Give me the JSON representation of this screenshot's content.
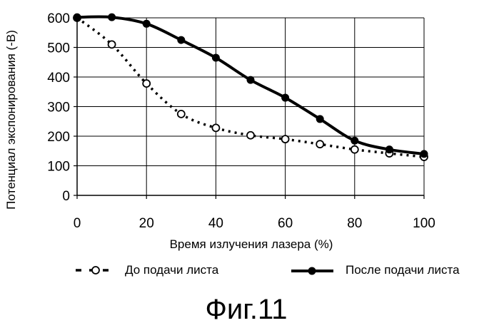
{
  "chart_data": {
    "type": "line",
    "xlabel": "Время излучения лазера (%)",
    "ylabel": "Потенциал экспонирования (-В)",
    "xlim": [
      0,
      100
    ],
    "ylim": [
      0,
      600
    ],
    "xticks": [
      0,
      20,
      40,
      60,
      80,
      100
    ],
    "yticks": [
      0,
      100,
      200,
      300,
      400,
      500,
      600
    ],
    "grid": true,
    "legend_position": "bottom",
    "x": [
      0,
      10,
      20,
      30,
      40,
      50,
      60,
      70,
      80,
      90,
      100
    ],
    "series": [
      {
        "name": "До подачи листа",
        "style": "dotted-open-circle",
        "color": "#000000",
        "values": [
          600,
          510,
          378,
          275,
          228,
          203,
          190,
          173,
          155,
          142,
          130
        ]
      },
      {
        "name": "После подачи листа",
        "style": "solid-filled-circle",
        "color": "#000000",
        "values": [
          602,
          602,
          580,
          525,
          465,
          390,
          330,
          258,
          185,
          155,
          140
        ]
      }
    ]
  },
  "caption": "Фиг.11"
}
